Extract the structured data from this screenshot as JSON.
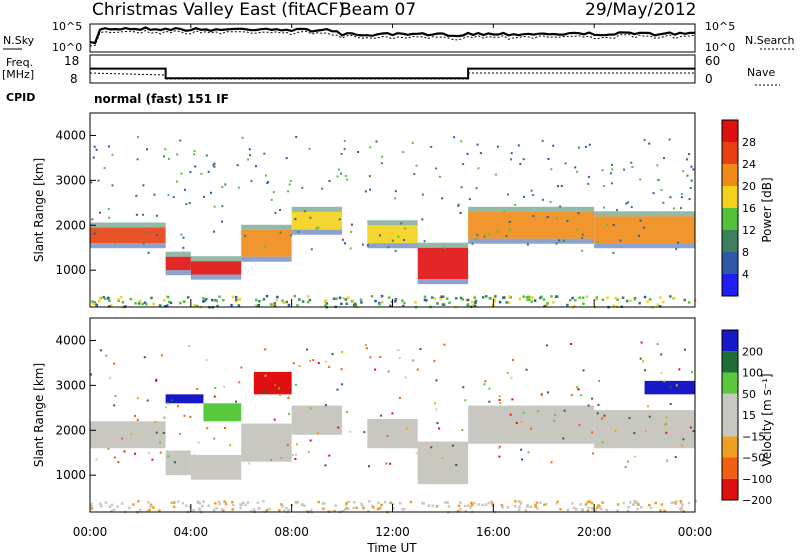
{
  "header": {
    "station": "Christmas Valley East (fitACF)",
    "beam": "Beam 07",
    "date": "29/May/2012"
  },
  "noise_panel": {
    "left_label": "N.Sky",
    "right_label": "N.Search",
    "left_ticks": [
      "10^5",
      "10^0"
    ],
    "right_ticks": [
      "10^5",
      "10^0"
    ]
  },
  "freq_panel": {
    "left_label_1": "Freq.",
    "left_label_2": "[MHz]",
    "right_label": "Nave",
    "left_ticks": [
      "18",
      "8"
    ],
    "right_ticks": [
      "60",
      "0"
    ]
  },
  "cpid": {
    "label": "CPID",
    "text": "normal (fast) 151 IF"
  },
  "power_panel": {
    "ylabel": "Slant Range [km]",
    "y_ticks": [
      "1000",
      "2000",
      "3000",
      "4000"
    ],
    "colorbar_label": "Power [dB]",
    "colorbar_ticks": [
      "4",
      "8",
      "12",
      "16",
      "20",
      "24",
      "28"
    ]
  },
  "velocity_panel": {
    "ylabel": "Slant Range [km]",
    "y_ticks": [
      "1000",
      "2000",
      "3000",
      "4000"
    ],
    "colorbar_label": "Velocity [m s⁻¹]",
    "colorbar_ticks": [
      "200",
      "100",
      "50",
      "15",
      "−15",
      "−50",
      "−100",
      "−200"
    ]
  },
  "x_axis": {
    "label": "Time UT",
    "ticks": [
      "00:00",
      "04:00",
      "08:00",
      "12:00",
      "16:00",
      "20:00",
      "00:00"
    ]
  },
  "colors": {
    "power_scale": [
      "#1e1ef0",
      "#2e58a8",
      "#3b7f5e",
      "#52c23a",
      "#f2d21a",
      "#f08a18",
      "#e84010",
      "#e01010"
    ],
    "velocity_scale": [
      "#1818c8",
      "#1f6e3a",
      "#58c83c",
      "#c8c8c0",
      "#c8c8c0",
      "#f0a020",
      "#f06010",
      "#e01010"
    ]
  },
  "chart_data": {
    "type": "heatmap",
    "x_range_hours": [
      0,
      24
    ],
    "y_range_km": [
      180,
      4500
    ],
    "frequency_mhz": [
      {
        "x": [
          0,
          3
        ],
        "value": 14
      },
      {
        "x": [
          3,
          15
        ],
        "value": 10
      },
      {
        "x": [
          15,
          24
        ],
        "value": 14
      }
    ],
    "power_bands": [
      {
        "x": [
          0,
          3
        ],
        "y": [
          1600,
          1950
        ],
        "power_db": 24
      },
      {
        "x": [
          3,
          4
        ],
        "y": [
          1000,
          1300
        ],
        "power_db": 28
      },
      {
        "x": [
          4,
          6
        ],
        "y": [
          900,
          1200
        ],
        "power_db": 28
      },
      {
        "x": [
          6,
          8
        ],
        "y": [
          1300,
          1900
        ],
        "power_db": 22
      },
      {
        "x": [
          8,
          10
        ],
        "y": [
          1900,
          2300
        ],
        "power_db": 18
      },
      {
        "x": [
          11,
          13
        ],
        "y": [
          1600,
          2000
        ],
        "power_db": 18
      },
      {
        "x": [
          13,
          15
        ],
        "y": [
          800,
          1500
        ],
        "power_db": 28
      },
      {
        "x": [
          15,
          20
        ],
        "y": [
          1700,
          2300
        ],
        "power_db": 22
      },
      {
        "x": [
          20,
          24
        ],
        "y": [
          1600,
          2200
        ],
        "power_db": 20
      }
    ],
    "velocity_bands": [
      {
        "x": [
          3,
          4.5
        ],
        "y": [
          2600,
          2800
        ],
        "velocity": 200
      },
      {
        "x": [
          4.5,
          6
        ],
        "y": [
          2200,
          2600
        ],
        "velocity": 70
      },
      {
        "x": [
          6.5,
          8
        ],
        "y": [
          2800,
          3300
        ],
        "velocity": -200
      },
      {
        "x": [
          22,
          24
        ],
        "y": [
          2800,
          3100
        ],
        "velocity": 150
      }
    ]
  }
}
